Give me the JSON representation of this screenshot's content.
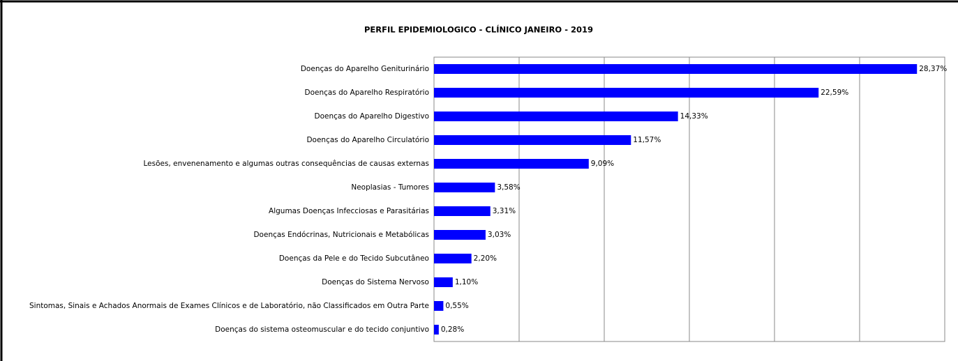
{
  "chart_data": {
    "type": "barh",
    "title": "PERFIL EPIDEMIOLOGICO - CLÍNICO JANEIRO - 2019",
    "categories": [
      "Doenças do Aparelho Geniturinário",
      "Doenças do Aparelho Respiratório",
      "Doenças do Aparelho Digestivo",
      "Doenças do Aparelho Circulatório",
      "Lesões, envenenamento e algumas outras consequências de causas externas",
      "Neoplasias - Tumores",
      "Algumas Doenças Infecciosas e Parasitárias",
      "Doenças Endócrinas, Nutricionais e Metabólicas",
      "Doenças da Pele e do Tecido Subcutâneo",
      "Doenças do Sistema Nervoso",
      "Sintomas, Sinais e Achados Anormais de Exames Clínicos e de Laboratório, não Classificados em Outra Parte",
      "Doenças do sistema osteomuscular e do tecido conjuntivo"
    ],
    "values": [
      28.37,
      22.59,
      14.33,
      11.57,
      9.09,
      3.58,
      3.31,
      3.03,
      2.2,
      1.1,
      0.55,
      0.28
    ],
    "value_labels": [
      "28,37%",
      "22,59%",
      "14,33%",
      "11,57%",
      "9,09%",
      "3,58%",
      "3,31%",
      "3,03%",
      "2,20%",
      "1,10%",
      "0,55%",
      "0,28%"
    ],
    "color": "#0000ff",
    "xlim": [
      0,
      30
    ],
    "xticks": [
      0,
      5,
      10,
      15,
      20,
      25,
      30
    ],
    "grid": true
  }
}
